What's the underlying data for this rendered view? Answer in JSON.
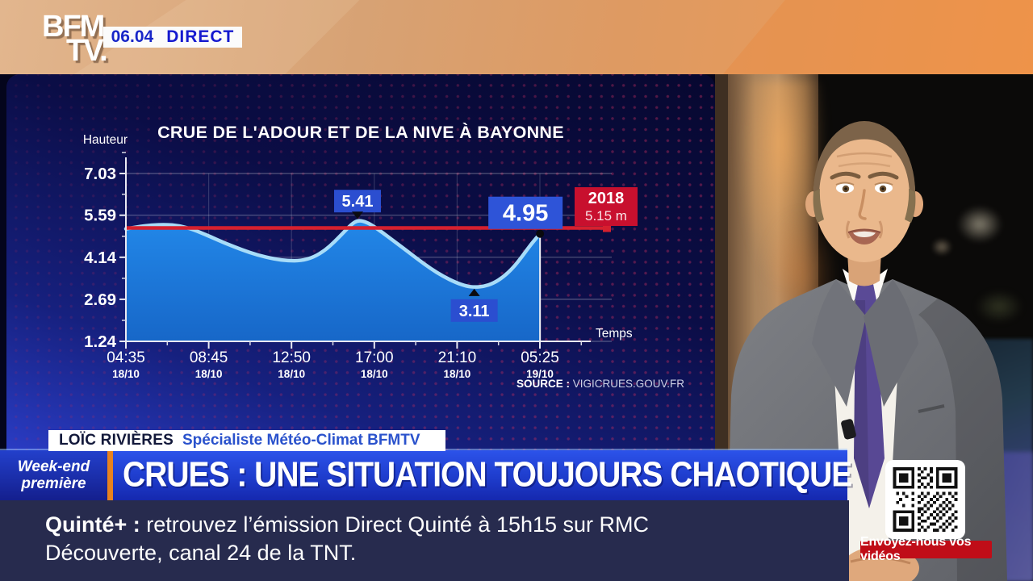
{
  "channel": {
    "logo_line1": "BFM",
    "logo_line2": "TV.",
    "time": "06.04",
    "live_label": "DIRECT"
  },
  "chart_data": {
    "type": "area",
    "title": "CRUE DE L'ADOUR ET DE LA NIVE À BAYONNE",
    "ylabel": "Hauteur",
    "xlabel": "Temps",
    "ylim": [
      1.24,
      7.75
    ],
    "yticks": [
      7.03,
      5.59,
      4.14,
      2.69,
      1.24
    ],
    "xticks": [
      {
        "time": "04:35",
        "date": "18/10"
      },
      {
        "time": "08:45",
        "date": "18/10"
      },
      {
        "time": "12:50",
        "date": "18/10"
      },
      {
        "time": "17:00",
        "date": "18/10"
      },
      {
        "time": "21:10",
        "date": "18/10"
      },
      {
        "time": "05:25",
        "date": "19/10"
      }
    ],
    "reference_line": {
      "year": "2018",
      "value_label": "5.15 m",
      "value": 5.15
    },
    "annotations": [
      {
        "label": "5.41",
        "x": 0.5,
        "value": 5.41,
        "style": "peak"
      },
      {
        "label": "3.11",
        "x": 0.752,
        "value": 3.11,
        "style": "trough"
      },
      {
        "label": "4.95",
        "x": 0.894,
        "value": 4.95,
        "style": "end"
      }
    ],
    "series": [
      {
        "name": "Hauteur (m)",
        "points": [
          [
            0.0,
            5.12
          ],
          [
            0.025,
            5.19
          ],
          [
            0.055,
            5.25
          ],
          [
            0.085,
            5.27
          ],
          [
            0.115,
            5.23
          ],
          [
            0.145,
            5.1
          ],
          [
            0.178,
            4.88
          ],
          [
            0.215,
            4.62
          ],
          [
            0.25,
            4.4
          ],
          [
            0.285,
            4.21
          ],
          [
            0.32,
            4.08
          ],
          [
            0.35,
            4.02
          ],
          [
            0.378,
            4.02
          ],
          [
            0.405,
            4.14
          ],
          [
            0.43,
            4.38
          ],
          [
            0.452,
            4.7
          ],
          [
            0.47,
            5.0
          ],
          [
            0.487,
            5.28
          ],
          [
            0.5,
            5.41
          ],
          [
            0.515,
            5.38
          ],
          [
            0.532,
            5.24
          ],
          [
            0.555,
            4.98
          ],
          [
            0.58,
            4.68
          ],
          [
            0.605,
            4.38
          ],
          [
            0.632,
            4.05
          ],
          [
            0.658,
            3.75
          ],
          [
            0.685,
            3.48
          ],
          [
            0.712,
            3.27
          ],
          [
            0.735,
            3.14
          ],
          [
            0.752,
            3.11
          ],
          [
            0.772,
            3.13
          ],
          [
            0.793,
            3.24
          ],
          [
            0.815,
            3.46
          ],
          [
            0.836,
            3.78
          ],
          [
            0.856,
            4.18
          ],
          [
            0.875,
            4.6
          ],
          [
            0.894,
            4.95
          ]
        ]
      }
    ],
    "source_prefix": "SOURCE :",
    "source_text": "VIGICRUES.GOUV.FR",
    "grid": true,
    "legend": false
  },
  "speaker": {
    "name": "LOÏC RIVIÈRES",
    "role": "Spécialiste Météo-Climat BFMTV"
  },
  "banner": {
    "program_line1": "Week-end",
    "program_line2": "première",
    "headline": "CRUES : UNE SITUATION TOUJOURS CHAOTIQUE"
  },
  "ticker": {
    "lead": "Quinté+ :",
    "line1": "retrouvez l’émission Direct Quinté à 15h15 sur RMC",
    "line2": "Découverte, canal 24 de la TNT."
  },
  "qr": {
    "caption": "Envoyez-nous vos vidéos"
  },
  "colors": {
    "panel_blue": "#0b0d46",
    "chart_fill": "#1e80e0",
    "chart_line": "#a8dcf8",
    "alert_red": "#d6202e",
    "badge_blue": "#2b4ed0",
    "red_badge": "#c8102e",
    "banner_blue": "#2043d8",
    "bfm_orange": "#ef9a53",
    "qr_badge_red": "#c00d18",
    "ticker_navy": "#272b4e"
  }
}
